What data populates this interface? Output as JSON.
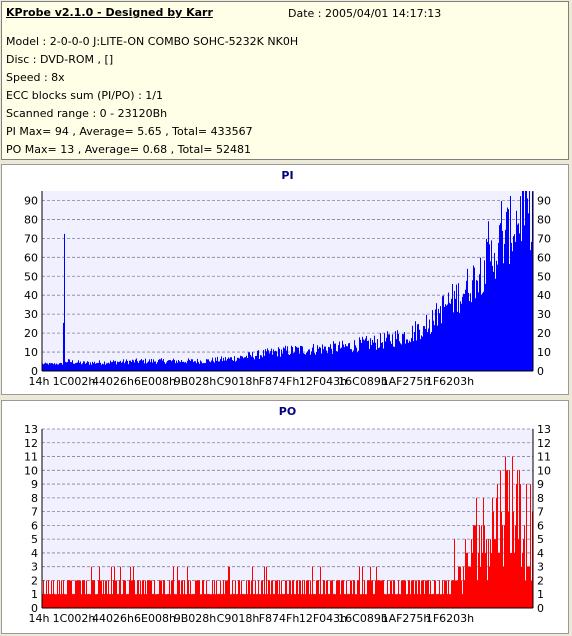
{
  "info": {
    "title": "KProbe v2.1.0 - Designed by Karr",
    "date": "Date : 2005/04/01 14:17:13",
    "lines": [
      "Model : 2-0-0-0 J:LITE-ON COMBO SOHC-5232K NK0H",
      "Disc : DVD-ROM ,  []",
      "Speed : 8x",
      "ECC blocks sum (PI/PO) : 1/1",
      "Scanned range : 0 - 23120Bh",
      "PI Max= 94 , Average= 5.65 , Total= 433567",
      "PO Max= 13 , Average= 0.68 , Total= 52481"
    ]
  },
  "colors": {
    "pi": "#0000ff",
    "po": "#ff0000",
    "grid": "#8080a0",
    "plot_bg": "#f0f0ff"
  },
  "chart_data": [
    {
      "type": "bar",
      "title": "PI",
      "ylim": [
        0,
        95
      ],
      "yticks": [
        0,
        10,
        20,
        30,
        40,
        50,
        60,
        70,
        80,
        90
      ],
      "xticks": [
        "14h",
        "1C002h",
        "44026h",
        "6E008h",
        "9B028h",
        "C9018h",
        "F874Fh",
        "12F043h",
        "16C089h",
        "1AF275h",
        "1F6203h"
      ],
      "x_range": "0 - 23120Bh",
      "grid": true,
      "profile": [
        [
          0,
          4
        ],
        [
          20,
          4
        ],
        [
          21,
          27
        ],
        [
          22,
          71
        ],
        [
          23,
          5
        ],
        [
          40,
          4
        ],
        [
          100,
          5
        ],
        [
          160,
          5
        ],
        [
          185,
          6
        ],
        [
          200,
          7
        ],
        [
          240,
          10
        ],
        [
          300,
          12
        ],
        [
          340,
          15
        ],
        [
          370,
          19
        ],
        [
          385,
          25
        ],
        [
          400,
          36
        ],
        [
          420,
          45
        ],
        [
          440,
          58
        ],
        [
          460,
          74
        ],
        [
          470,
          82
        ],
        [
          480,
          92
        ],
        [
          490,
          90
        ],
        [
          500,
          80
        ],
        [
          510,
          72
        ],
        [
          520,
          66
        ],
        [
          530,
          62
        ]
      ]
    },
    {
      "type": "bar",
      "title": "PO",
      "ylim": [
        0,
        13
      ],
      "yticks": [
        0,
        1,
        2,
        3,
        4,
        5,
        6,
        7,
        8,
        9,
        10,
        11,
        12,
        13
      ],
      "xticks": [
        "14h",
        "1C002h",
        "44026h",
        "6E008h",
        "9B028h",
        "C9018h",
        "F874Fh",
        "12F043h",
        "16C089h",
        "1AF275h",
        "1F6203h"
      ],
      "x_range": "0 - 23120Bh",
      "grid": true,
      "profile": [
        [
          0,
          2
        ],
        [
          100,
          1.5
        ],
        [
          280,
          1.5
        ],
        [
          300,
          1.5
        ],
        [
          390,
          2
        ],
        [
          410,
          2
        ],
        [
          420,
          3
        ],
        [
          430,
          4.5
        ],
        [
          440,
          6
        ],
        [
          450,
          7
        ],
        [
          460,
          8
        ],
        [
          470,
          9
        ],
        [
          480,
          7
        ],
        [
          495,
          5.5
        ],
        [
          510,
          4.5
        ],
        [
          530,
          3.5
        ]
      ]
    }
  ]
}
